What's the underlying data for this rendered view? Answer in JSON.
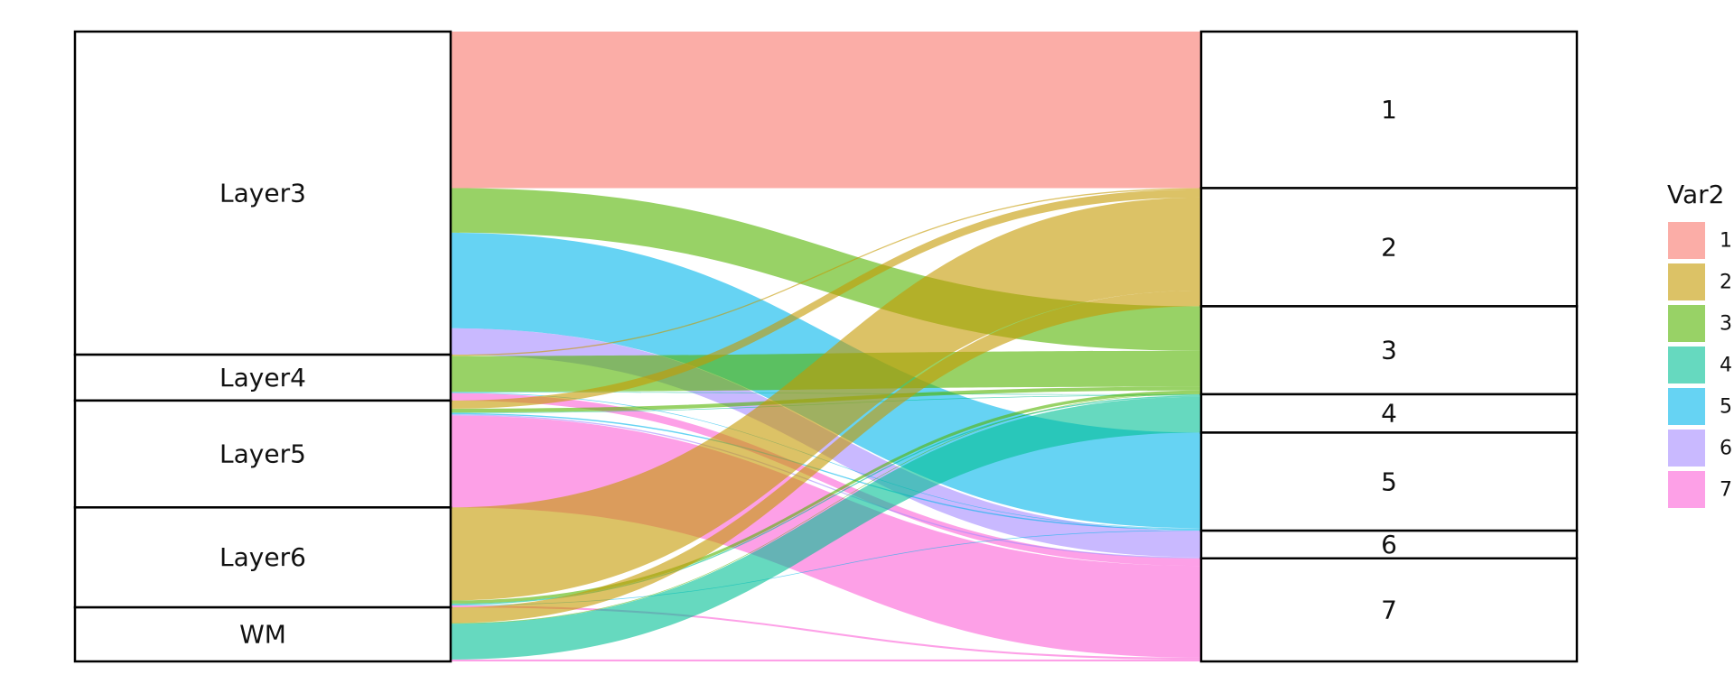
{
  "chart_data": {
    "type": "alluvial",
    "title": "",
    "axes": [
      {
        "name": "",
        "strata": [
          "Layer3",
          "Layer4",
          "Layer5",
          "Layer6",
          "WM"
        ]
      },
      {
        "name": "",
        "strata": [
          "1",
          "2",
          "3",
          "4",
          "5",
          "6",
          "7"
        ]
      }
    ],
    "legend": {
      "title": "Var2",
      "position": "right",
      "items": [
        {
          "label": "1",
          "color": "#F8766D"
        },
        {
          "label": "2",
          "color": "#C49A00"
        },
        {
          "label": "3",
          "color": "#53B400"
        },
        {
          "label": "4",
          "color": "#00C094"
        },
        {
          "label": "5",
          "color": "#00B6EB"
        },
        {
          "label": "6",
          "color": "#A58AFF"
        },
        {
          "label": "7",
          "color": "#FB61D7"
        }
      ]
    },
    "flows": [
      {
        "from": "Layer3",
        "to": "1",
        "value": 249
      },
      {
        "from": "Layer3",
        "to": "3",
        "value": 71
      },
      {
        "from": "Layer3",
        "to": "5",
        "value": 152
      },
      {
        "from": "Layer3",
        "to": "6",
        "value": 42
      },
      {
        "from": "Layer4",
        "to": "2",
        "value": 2
      },
      {
        "from": "Layer4",
        "to": "3",
        "value": 57
      },
      {
        "from": "Layer4",
        "to": "4",
        "value": 1
      },
      {
        "from": "Layer4",
        "to": "5",
        "value": 1
      },
      {
        "from": "Layer4",
        "to": "7",
        "value": 12
      },
      {
        "from": "Layer5",
        "to": "2",
        "value": 13
      },
      {
        "from": "Layer5",
        "to": "3",
        "value": 6
      },
      {
        "from": "Layer5",
        "to": "4",
        "value": 1
      },
      {
        "from": "Layer5",
        "to": "5",
        "value": 2
      },
      {
        "from": "Layer5",
        "to": "6",
        "value": 2
      },
      {
        "from": "Layer5",
        "to": "7",
        "value": 146
      },
      {
        "from": "Layer6",
        "to": "2",
        "value": 148
      },
      {
        "from": "Layer6",
        "to": "3",
        "value": 5
      },
      {
        "from": "Layer6",
        "to": "4",
        "value": 2
      },
      {
        "from": "Layer6",
        "to": "5",
        "value": 1
      },
      {
        "from": "Layer6",
        "to": "7",
        "value": 3
      },
      {
        "from": "WM",
        "to": "2",
        "value": 25
      },
      {
        "from": "WM",
        "to": "3",
        "value": 1
      },
      {
        "from": "WM",
        "to": "4",
        "value": 57
      },
      {
        "from": "WM",
        "to": "7",
        "value": 3
      }
    ]
  }
}
